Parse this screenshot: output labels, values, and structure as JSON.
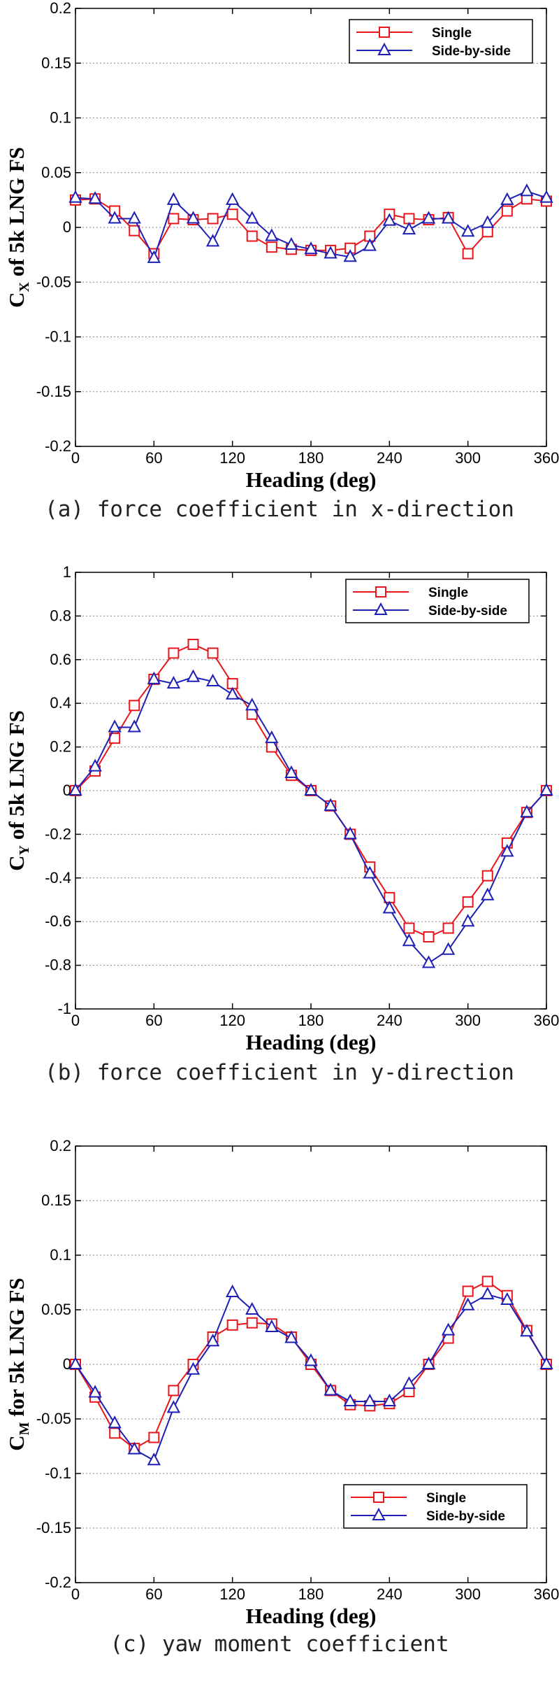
{
  "chart_data": [
    {
      "type": "line",
      "caption": "(a) force coefficient in x-direction",
      "xlabel": "Heading (deg)",
      "ylabel_main": "C",
      "ylabel_sub": "X",
      "ylabel_rest": " of 5k LNG FS",
      "xlim": [
        0,
        360
      ],
      "ylim": [
        -0.2,
        0.2
      ],
      "xticks": [
        0,
        60,
        120,
        180,
        240,
        300,
        360
      ],
      "yticks": [
        -0.2,
        -0.15,
        -0.1,
        -0.05,
        0,
        0.05,
        0.1,
        0.15,
        0.2
      ],
      "ytick_labels": [
        "-0.2",
        "-0.15",
        "-0.1",
        "-0.05",
        "0",
        "0.05",
        "0.1",
        "0.15",
        "0.2"
      ],
      "grid": "horizontal-dotted",
      "legend_position": "top-right",
      "x": [
        0,
        15,
        30,
        45,
        60,
        75,
        90,
        105,
        120,
        135,
        150,
        165,
        180,
        195,
        210,
        225,
        240,
        255,
        270,
        285,
        300,
        315,
        330,
        345,
        360
      ],
      "series": [
        {
          "name": "Single",
          "color": "#e8151b",
          "marker": "square",
          "values": [
            0.025,
            0.026,
            0.015,
            -0.003,
            -0.024,
            0.008,
            0.007,
            0.008,
            0.012,
            -0.008,
            -0.018,
            -0.02,
            -0.021,
            -0.021,
            -0.019,
            -0.008,
            0.012,
            0.008,
            0.007,
            0.009,
            -0.024,
            -0.004,
            0.015,
            0.026,
            0.024
          ]
        },
        {
          "name": "Side-by-side",
          "color": "#1d1fb5",
          "marker": "triangle",
          "values": [
            0.027,
            0.026,
            0.008,
            0.008,
            -0.028,
            0.025,
            0.008,
            -0.013,
            0.025,
            0.008,
            -0.008,
            -0.016,
            -0.02,
            -0.024,
            -0.027,
            -0.017,
            0.006,
            -0.002,
            0.008,
            0.008,
            -0.004,
            0.004,
            0.025,
            0.033,
            0.027
          ]
        }
      ]
    },
    {
      "type": "line",
      "caption": "(b) force coefficient in y-direction",
      "xlabel": "Heading (deg)",
      "ylabel_main": "C",
      "ylabel_sub": "Y",
      "ylabel_rest": " of 5k LNG FS",
      "xlim": [
        0,
        360
      ],
      "ylim": [
        -1,
        1
      ],
      "xticks": [
        0,
        60,
        120,
        180,
        240,
        300,
        360
      ],
      "yticks": [
        -1,
        -0.8,
        -0.6,
        -0.4,
        -0.2,
        0,
        0.2,
        0.4,
        0.6,
        0.8,
        1
      ],
      "ytick_labels": [
        "-1",
        "-0.8",
        "-0.6",
        "-0.4",
        "-0.2",
        "0",
        "0.2",
        "0.4",
        "0.6",
        "0.8",
        "1"
      ],
      "grid": "horizontal-dotted",
      "legend_position": "top-right",
      "x": [
        0,
        15,
        30,
        45,
        60,
        75,
        90,
        105,
        120,
        135,
        150,
        165,
        180,
        195,
        210,
        225,
        240,
        255,
        270,
        285,
        300,
        315,
        330,
        345,
        360
      ],
      "series": [
        {
          "name": "Single",
          "color": "#e8151b",
          "marker": "square",
          "values": [
            0,
            0.09,
            0.24,
            0.39,
            0.51,
            0.63,
            0.67,
            0.63,
            0.49,
            0.35,
            0.2,
            0.07,
            0,
            -0.07,
            -0.2,
            -0.35,
            -0.49,
            -0.63,
            -0.67,
            -0.63,
            -0.51,
            -0.39,
            -0.24,
            -0.1,
            0
          ]
        },
        {
          "name": "Side-by-side",
          "color": "#1d1fb5",
          "marker": "triangle",
          "values": [
            0,
            0.11,
            0.29,
            0.29,
            0.51,
            0.49,
            0.52,
            0.5,
            0.44,
            0.39,
            0.24,
            0.08,
            0,
            -0.07,
            -0.2,
            -0.38,
            -0.54,
            -0.69,
            -0.79,
            -0.73,
            -0.6,
            -0.48,
            -0.28,
            -0.1,
            0
          ]
        }
      ]
    },
    {
      "type": "line",
      "caption": "(c) yaw moment coefficient",
      "xlabel": "Heading (deg)",
      "ylabel_main": "C",
      "ylabel_sub": "M",
      "ylabel_rest": " for 5k LNG FS",
      "xlim": [
        0,
        360
      ],
      "ylim": [
        -0.2,
        0.2
      ],
      "xticks": [
        0,
        60,
        120,
        180,
        240,
        300,
        360
      ],
      "yticks": [
        -0.2,
        -0.15,
        -0.1,
        -0.05,
        0,
        0.05,
        0.1,
        0.15,
        0.2
      ],
      "ytick_labels": [
        "-0.2",
        "-0.15",
        "-0.1",
        "-0.05",
        "0",
        "0.05",
        "0.1",
        "0.15",
        "0.2"
      ],
      "grid": "horizontal-dotted",
      "legend_position": "bottom-right",
      "x": [
        0,
        15,
        30,
        45,
        60,
        75,
        90,
        105,
        120,
        135,
        150,
        165,
        180,
        195,
        210,
        225,
        240,
        255,
        270,
        285,
        300,
        315,
        330,
        345,
        360
      ],
      "series": [
        {
          "name": "Single",
          "color": "#e8151b",
          "marker": "square",
          "values": [
            0,
            -0.03,
            -0.063,
            -0.077,
            -0.067,
            -0.024,
            0,
            0.025,
            0.036,
            0.038,
            0.037,
            0.025,
            0,
            -0.024,
            -0.037,
            -0.038,
            -0.036,
            -0.025,
            0,
            0.024,
            0.067,
            0.076,
            0.063,
            0.031,
            0
          ]
        },
        {
          "name": "Side-by-side",
          "color": "#1d1fb5",
          "marker": "triangle",
          "values": [
            0,
            -0.026,
            -0.054,
            -0.078,
            -0.088,
            -0.04,
            -0.005,
            0.021,
            0.066,
            0.05,
            0.034,
            0.024,
            0.003,
            -0.024,
            -0.034,
            -0.034,
            -0.034,
            -0.018,
            0,
            0.031,
            0.054,
            0.064,
            0.059,
            0.03,
            0
          ]
        }
      ]
    }
  ]
}
